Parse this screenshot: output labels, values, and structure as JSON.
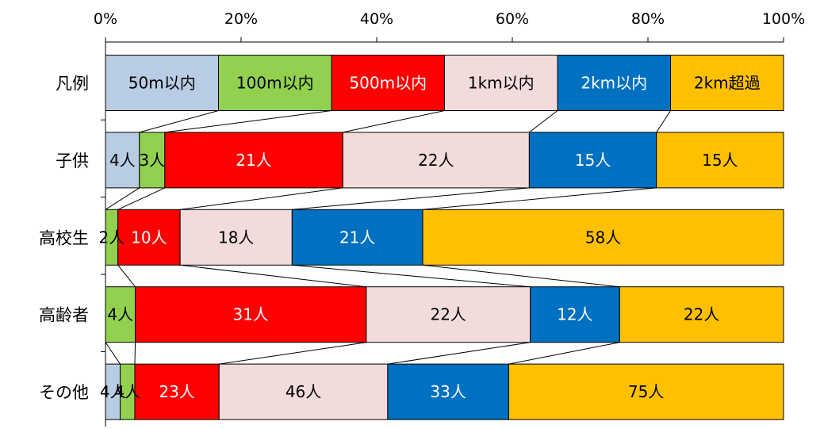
{
  "chart_data": {
    "type": "bar",
    "orientation": "horizontal",
    "stacked": "percent",
    "xlim": [
      0,
      100
    ],
    "x_ticks": [
      "0%",
      "20%",
      "40%",
      "60%",
      "80%",
      "100%"
    ],
    "x_axis_position": "top",
    "grid": false,
    "categories": [
      "凡例",
      "子供",
      "高校生",
      "高齢者",
      "その他"
    ],
    "series": [
      {
        "name": "50m以内",
        "color": "#B8CCE4",
        "values": [
          1,
          4,
          0,
          0,
          4
        ],
        "labels": [
          "50m以内",
          "4人",
          "",
          "",
          "4人"
        ]
      },
      {
        "name": "100m以内",
        "color": "#92D050",
        "values": [
          1,
          3,
          2,
          4,
          4
        ],
        "labels": [
          "100m以内",
          "3人",
          "2人",
          "4人",
          "4人"
        ]
      },
      {
        "name": "500m以内",
        "color": "#FF0000",
        "values": [
          1,
          21,
          10,
          31,
          23
        ],
        "labels": [
          "500m以内",
          "21人",
          "10人",
          "31人",
          "23人"
        ]
      },
      {
        "name": "1km以内",
        "color": "#F2DCDB",
        "values": [
          1,
          22,
          18,
          22,
          46
        ],
        "labels": [
          "1km以内",
          "22人",
          "18人",
          "22人",
          "46人"
        ]
      },
      {
        "name": "2km以内",
        "color": "#0070C0",
        "values": [
          1,
          15,
          21,
          12,
          33
        ],
        "labels": [
          "2km以内",
          "15人",
          "21人",
          "12人",
          "33人"
        ]
      },
      {
        "name": "2km超過",
        "color": "#FFC000",
        "values": [
          1,
          15,
          58,
          22,
          75
        ],
        "labels": [
          "2km超過",
          "15人",
          "58人",
          "22人",
          "75人"
        ]
      }
    ],
    "series_lines": true
  }
}
